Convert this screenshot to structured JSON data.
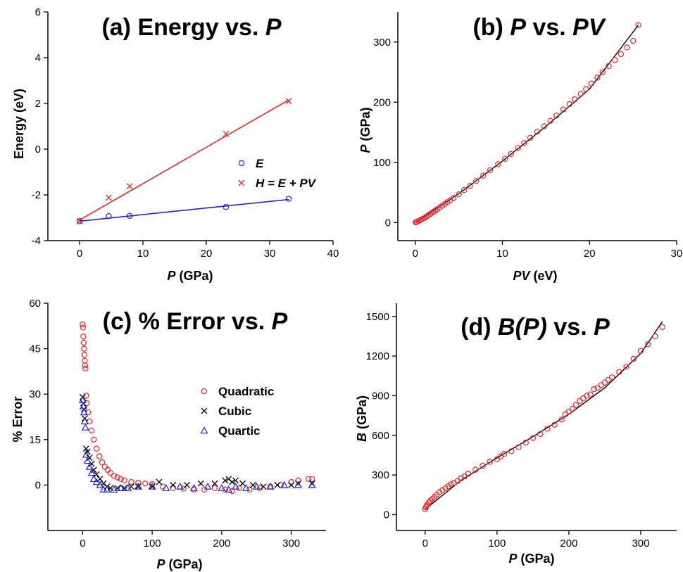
{
  "colors": {
    "red": "#e8262a",
    "blue": "#2222cc",
    "black": "#000000",
    "axis": "#000000"
  },
  "chart_data": [
    {
      "panel": "a",
      "type": "scatter",
      "title_parts": [
        "(a) Energy vs. ",
        "P"
      ],
      "xlabel_parts": [
        "P",
        " (GPa)"
      ],
      "ylabel": "Energy (eV)",
      "xlim": [
        -5,
        40
      ],
      "ylim": [
        -4,
        6
      ],
      "xticks": [
        0,
        10,
        20,
        30,
        40
      ],
      "yticks": [
        -4,
        -2,
        0,
        2,
        4,
        6
      ],
      "series": [
        {
          "name": "E",
          "marker": "circle",
          "color": "#2222cc",
          "x": [
            0,
            4.6,
            7.9,
            23.1,
            33
          ],
          "y": [
            -3.15,
            -2.93,
            -2.92,
            -2.53,
            -2.17
          ]
        },
        {
          "name": "H = E + PV",
          "marker": "x",
          "color": "#e8262a",
          "x": [
            0,
            4.6,
            7.9,
            23.1,
            33
          ],
          "y": [
            -3.15,
            -2.12,
            -1.62,
            0.67,
            2.1
          ]
        }
      ],
      "fits": [
        {
          "color": "#2222cc",
          "x": [
            0,
            33
          ],
          "y": [
            -3.15,
            -2.2
          ]
        },
        {
          "color": "#e8262a",
          "x": [
            0,
            33
          ],
          "y": [
            -3.1,
            2.15
          ]
        }
      ],
      "legend": [
        {
          "label": "E",
          "marker": "circle",
          "color": "#2222cc"
        },
        {
          "label": "H = E + PV",
          "marker": "x",
          "color": "#e8262a"
        }
      ]
    },
    {
      "panel": "b",
      "type": "scatter",
      "title_parts": [
        "(b) ",
        "P",
        " vs. ",
        "PV"
      ],
      "xlabel_parts": [
        "PV",
        " (eV)"
      ],
      "ylabel_parts": [
        "P",
        " (GPa)"
      ],
      "xlim": [
        -2,
        30
      ],
      "ylim": [
        -30,
        350
      ],
      "xticks": [
        0,
        10,
        20,
        30
      ],
      "yticks": [
        0,
        100,
        200,
        300
      ],
      "series": [
        {
          "marker": "circle",
          "color": "#e8262a",
          "x": [
            0.05,
            0.15,
            0.3,
            0.5,
            0.7,
            0.9,
            1.1,
            1.3,
            1.5,
            1.7,
            1.9,
            2.1,
            2.3,
            2.5,
            2.8,
            3.1,
            3.4,
            3.7,
            4.0,
            4.4,
            5.0,
            5.6,
            6.3,
            7.0,
            7.8,
            8.6,
            9.5,
            10.3,
            11.0,
            11.8,
            12.5,
            13.2,
            14.0,
            14.8,
            15.5,
            16.2,
            17.0,
            17.7,
            18.3,
            19.0,
            19.6,
            20.2,
            20.9,
            21.5,
            22.2,
            22.9,
            23.6,
            24.3,
            25.0,
            25.6
          ],
          "y": [
            0.3,
            1,
            2,
            3.5,
            5,
            6.5,
            8,
            10,
            12,
            14,
            16,
            18,
            20,
            22,
            25,
            28,
            31,
            34,
            37,
            41,
            47,
            54,
            61,
            69,
            78,
            87,
            97,
            106,
            114,
            124,
            132,
            141,
            151,
            160,
            169,
            178,
            188,
            197,
            205,
            214,
            222,
            231,
            241,
            250,
            260,
            270,
            280,
            291,
            302,
            328
          ]
        }
      ],
      "curve": {
        "color": "#000000",
        "x": [
          0,
          5,
          10,
          15,
          20,
          25.6
        ],
        "y": [
          0,
          48,
          102,
          160,
          222,
          328
        ]
      }
    },
    {
      "panel": "c",
      "type": "scatter",
      "title_parts": [
        "(c) % Error vs. ",
        "P"
      ],
      "xlabel_parts": [
        "P",
        " (GPa)"
      ],
      "ylabel": "% Error",
      "xlim": [
        -50,
        350
      ],
      "ylim": [
        -15,
        60
      ],
      "xticks": [
        0,
        100,
        200,
        300
      ],
      "yticks": [
        0,
        15,
        30,
        45,
        60
      ],
      "series": [
        {
          "name": "Quadratic",
          "marker": "circle",
          "color": "#e8262a",
          "x": [
            0,
            0.5,
            1,
            1.5,
            2,
            2.5,
            3,
            3.5,
            4,
            5,
            6,
            8,
            10,
            13,
            16,
            20,
            24,
            28,
            32,
            36,
            40,
            45,
            50,
            55,
            60,
            70,
            80,
            90,
            100,
            115,
            130,
            145,
            160,
            175,
            190,
            205,
            215,
            225,
            240,
            255,
            270,
            285,
            300,
            310,
            325,
            330
          ],
          "y": [
            53,
            52,
            49,
            47,
            45,
            43,
            41,
            39.5,
            38.5,
            29.5,
            27,
            24,
            21,
            18,
            15,
            12,
            9.5,
            7.5,
            6,
            5,
            4,
            3,
            2.5,
            2,
            1.5,
            1,
            0.8,
            0.5,
            0.3,
            -0.5,
            -1,
            -1.2,
            -1.5,
            -1.5,
            -1,
            -1.5,
            -2,
            -1,
            -1.5,
            -1,
            -0.5,
            0,
            1,
            1.5,
            2,
            2
          ]
        },
        {
          "name": "Cubic",
          "marker": "x",
          "color": "#000000",
          "x": [
            0,
            1,
            2,
            3,
            5,
            7,
            10,
            13,
            16,
            20,
            25,
            30,
            35,
            40,
            50,
            60,
            70,
            80,
            100,
            110,
            130,
            150,
            170,
            190,
            205,
            210,
            215,
            220,
            230,
            245,
            260,
            280,
            300,
            310,
            330
          ],
          "y": [
            29,
            27,
            25,
            22,
            12,
            11,
            9,
            7,
            5,
            3.5,
            2,
            0.5,
            -0.5,
            -1,
            -1,
            -1,
            -0.5,
            -0.5,
            -0.5,
            1,
            0,
            0,
            0.5,
            0.5,
            1.5,
            2,
            1,
            1.5,
            0.5,
            0,
            -0.5,
            0,
            0,
            0.5,
            0.5
          ]
        },
        {
          "name": "Quartic",
          "marker": "triangle",
          "color": "#2222cc",
          "x": [
            0,
            1,
            2,
            3,
            4,
            5,
            7,
            10,
            13,
            16,
            20,
            25,
            30,
            35,
            45,
            55,
            65,
            80,
            100,
            120,
            140,
            160,
            180,
            200,
            210,
            220,
            235,
            250,
            270,
            290,
            310,
            330
          ],
          "y": [
            28,
            26,
            24,
            21,
            19,
            10,
            8,
            6,
            4,
            2,
            1,
            0,
            -1.5,
            -1.5,
            -1.5,
            -1,
            -1,
            -0.5,
            -0.5,
            -1,
            -0.5,
            -1,
            -0.5,
            -1,
            -1.5,
            -0.5,
            -1,
            -0.5,
            -0.5,
            0,
            0,
            0
          ]
        }
      ],
      "legend": [
        {
          "label": "Quadratic",
          "marker": "circle",
          "color": "#e8262a"
        },
        {
          "label": "Cubic",
          "marker": "x",
          "color": "#000000"
        },
        {
          "label": "Quartic",
          "marker": "triangle",
          "color": "#2222cc"
        }
      ]
    },
    {
      "panel": "d",
      "type": "scatter",
      "title_parts": [
        "(d) ",
        "B(P)",
        " vs. ",
        "P"
      ],
      "xlabel_parts": [
        "P",
        " (GPa)"
      ],
      "ylabel_parts": [
        "B",
        " (GPa)"
      ],
      "xlim": [
        -40,
        350
      ],
      "ylim": [
        -120,
        1600
      ],
      "xticks": [
        0,
        100,
        200,
        300
      ],
      "yticks": [
        0,
        300,
        600,
        900,
        1200,
        1500
      ],
      "series": [
        {
          "marker": "circle",
          "color": "#e8262a",
          "x": [
            0,
            1,
            2,
            3,
            5,
            7,
            10,
            13,
            16,
            20,
            24,
            28,
            32,
            36,
            40,
            45,
            50,
            55,
            60,
            70,
            80,
            90,
            100,
            105,
            110,
            120,
            130,
            140,
            150,
            160,
            170,
            180,
            190,
            195,
            200,
            205,
            210,
            215,
            220,
            225,
            230,
            235,
            240,
            245,
            250,
            255,
            260,
            270,
            280,
            290,
            300,
            310,
            320,
            330
          ],
          "y": [
            40,
            55,
            65,
            75,
            90,
            105,
            120,
            135,
            150,
            170,
            185,
            200,
            215,
            230,
            240,
            255,
            275,
            290,
            310,
            340,
            370,
            400,
            420,
            440,
            460,
            480,
            510,
            545,
            580,
            610,
            650,
            680,
            720,
            760,
            780,
            800,
            830,
            860,
            880,
            900,
            910,
            950,
            960,
            980,
            1000,
            1020,
            1040,
            1080,
            1120,
            1180,
            1240,
            1290,
            1350,
            1420
          ]
        }
      ],
      "curve": {
        "color": "#000000",
        "x": [
          0,
          50,
          100,
          150,
          200,
          250,
          300,
          330
        ],
        "y": [
          40,
          260,
          430,
          590,
          760,
          960,
          1220,
          1460
        ]
      }
    }
  ]
}
